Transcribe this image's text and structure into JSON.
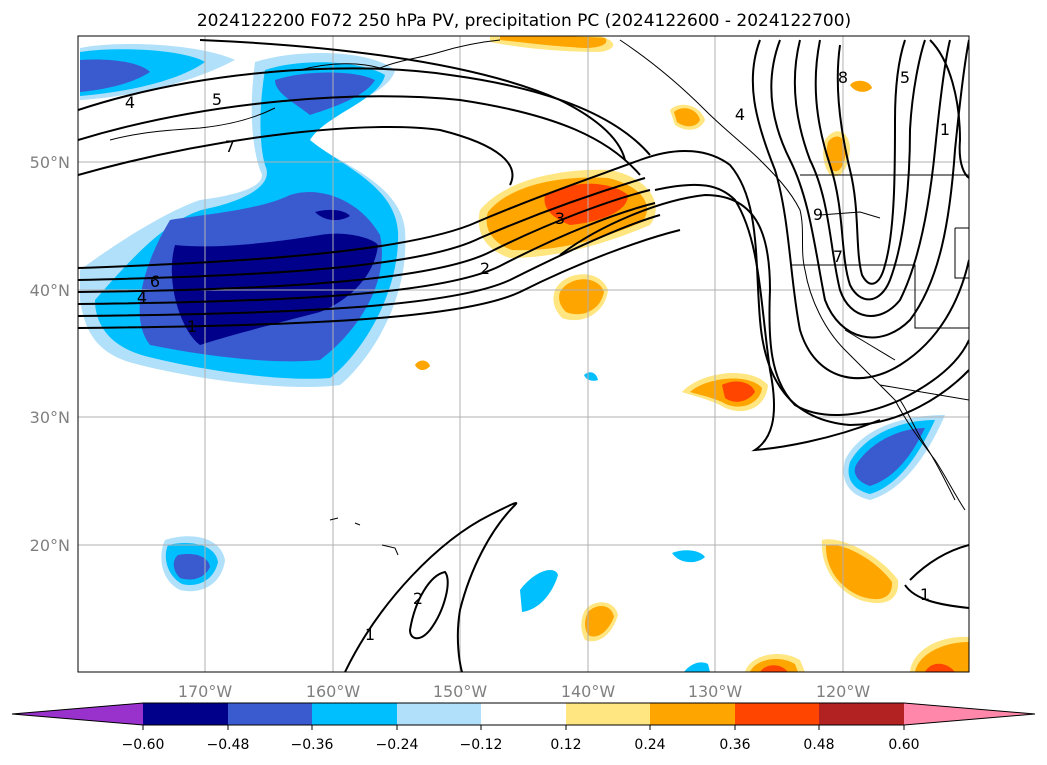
{
  "map": {
    "title": "2024122200 F072 250 hPa PV, precipitation PC (2024122600 - 2024122700)",
    "lat_labels": [
      "50°N",
      "40°N",
      "30°N",
      "20°N"
    ],
    "lon_labels": [
      "170°W",
      "160°W",
      "150°W",
      "140°W",
      "130°W",
      "120°W"
    ],
    "contour_labels": [
      "4",
      "5",
      "7",
      "6",
      "4",
      "1",
      "3",
      "2",
      "2",
      "1",
      "8",
      "5",
      "1",
      "9",
      "7",
      "1",
      "4"
    ]
  },
  "colorbar": {
    "ticks": [
      "−0.60",
      "−0.48",
      "−0.36",
      "−0.24",
      "−0.12",
      "0.12",
      "0.24",
      "0.36",
      "0.48",
      "0.60"
    ],
    "colors": [
      "#9932cc",
      "#00008b",
      "#3a5bd0",
      "#00bfff",
      "#b0e0fa",
      "#ffffff",
      "#ffe680",
      "#ffa500",
      "#ff4500",
      "#b22222",
      "#ff88aa"
    ]
  }
}
